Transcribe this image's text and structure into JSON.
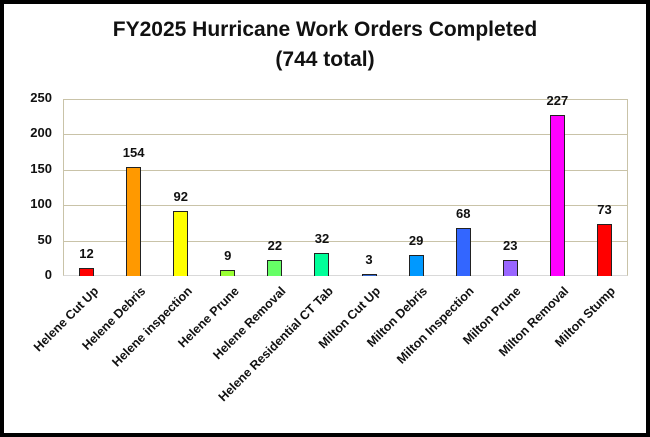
{
  "chart_data": {
    "type": "bar",
    "title": "FY2025 Hurricane Work Orders Completed",
    "subtitle": "(744 total)",
    "xlabel": "",
    "ylabel": "",
    "ylim": [
      0,
      250
    ],
    "yticks": [
      0,
      50,
      100,
      150,
      200,
      250
    ],
    "grid": true,
    "legend": "none",
    "categories": [
      "Helene Cut Up",
      "Helene Debris",
      "Helene inspection",
      "Helene Prune",
      "Helene Removal",
      "Helene Residential CT Tab",
      "Milton Cut Up",
      "Milton Debris",
      "Milton Inspection",
      "Milton Prune",
      "Milton Removal",
      "Milton Stump"
    ],
    "values": [
      12,
      154,
      92,
      9,
      22,
      32,
      3,
      29,
      68,
      23,
      227,
      73
    ],
    "colors": [
      "#ff0000",
      "#ff9900",
      "#ffff00",
      "#99ff33",
      "#66ff66",
      "#00ff99",
      "#3366cc",
      "#0099ff",
      "#3366ff",
      "#9966ff",
      "#ff00ff",
      "#ff0000"
    ]
  },
  "ui": {
    "title": "FY2025 Hurricane Work Orders Completed",
    "subtitle": "(744 total)"
  }
}
